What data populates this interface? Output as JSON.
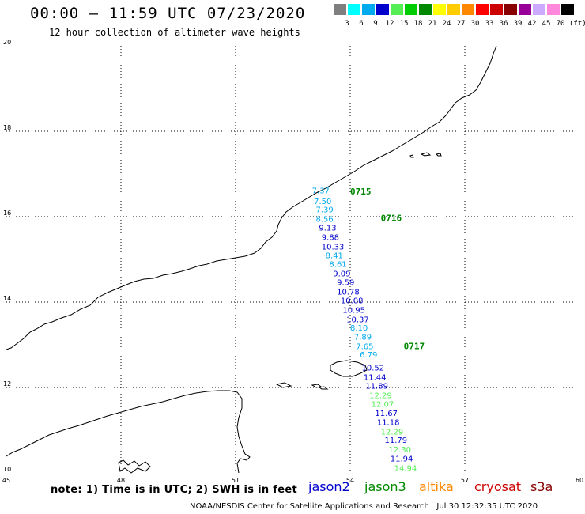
{
  "header": {
    "title": "00:00 – 11:59 UTC 07/23/2020",
    "subtitle": "12 hour collection of altimeter wave heights"
  },
  "legend": {
    "unit": "(ft)",
    "bins": [
      {
        "label": "3",
        "color": "#7f7f7f"
      },
      {
        "label": "6",
        "color": "#00ffff"
      },
      {
        "label": "9",
        "color": "#00aaee"
      },
      {
        "label": "12",
        "color": "#0000cc"
      },
      {
        "label": "15",
        "color": "#55ee55"
      },
      {
        "label": "18",
        "color": "#00cc00"
      },
      {
        "label": "21",
        "color": "#008800"
      },
      {
        "label": "24",
        "color": "#ffff00"
      },
      {
        "label": "27",
        "color": "#ffcc00"
      },
      {
        "label": "30",
        "color": "#ff8800"
      },
      {
        "label": "33",
        "color": "#ff0000"
      },
      {
        "label": "36",
        "color": "#cc0000"
      },
      {
        "label": "39",
        "color": "#880000"
      },
      {
        "label": "42",
        "color": "#990099"
      },
      {
        "label": "45",
        "color": "#ccaaff"
      },
      {
        "label": "70",
        "color": "#ff88dd"
      },
      {
        "label": "",
        "color": "#000000"
      }
    ]
  },
  "axes": {
    "lon_ticks": [
      "45",
      "48",
      "51",
      "54",
      "57",
      "60"
    ],
    "lat_ticks": [
      "10",
      "12",
      "14",
      "16",
      "18",
      "20"
    ],
    "lon_range": [
      45,
      60
    ],
    "lat_range": [
      10,
      20
    ]
  },
  "tracks": [
    {
      "label": "0715",
      "color": "#008800",
      "lon": 54.0,
      "lat": 16.52
    },
    {
      "label": "0716",
      "color": "#008800",
      "lon": 54.8,
      "lat": 15.9
    },
    {
      "label": "0717",
      "color": "#008800",
      "lon": 55.4,
      "lat": 12.9
    }
  ],
  "observations": [
    {
      "value": "7.37",
      "color": "#00aaee",
      "lon": 53.0,
      "lat": 16.55
    },
    {
      "value": "7.50",
      "color": "#00aaee",
      "lon": 53.05,
      "lat": 16.3
    },
    {
      "value": "7.39",
      "color": "#00aaee",
      "lon": 53.1,
      "lat": 16.1
    },
    {
      "value": "8.56",
      "color": "#00aaee",
      "lon": 53.1,
      "lat": 15.88
    },
    {
      "value": "9.13",
      "color": "#0000cc",
      "lon": 53.18,
      "lat": 15.68
    },
    {
      "value": "9.88",
      "color": "#0000cc",
      "lon": 53.25,
      "lat": 15.45
    },
    {
      "value": "10.33",
      "color": "#0000cc",
      "lon": 53.25,
      "lat": 15.23
    },
    {
      "value": "8.41",
      "color": "#00aaee",
      "lon": 53.35,
      "lat": 15.03
    },
    {
      "value": "8.61",
      "color": "#00aaee",
      "lon": 53.45,
      "lat": 14.82
    },
    {
      "value": "9.09",
      "color": "#0000cc",
      "lon": 53.55,
      "lat": 14.6
    },
    {
      "value": "9.59",
      "color": "#0000cc",
      "lon": 53.65,
      "lat": 14.4
    },
    {
      "value": "10.78",
      "color": "#0000cc",
      "lon": 53.65,
      "lat": 14.18
    },
    {
      "value": "10.08",
      "color": "#0000cc",
      "lon": 53.75,
      "lat": 13.97
    },
    {
      "value": "10.95",
      "color": "#0000cc",
      "lon": 53.8,
      "lat": 13.75
    },
    {
      "value": "10.37",
      "color": "#0000cc",
      "lon": 53.9,
      "lat": 13.53
    },
    {
      "value": "8.10",
      "color": "#00aaee",
      "lon": 54.0,
      "lat": 13.33
    },
    {
      "value": "7.89",
      "color": "#00aaee",
      "lon": 54.1,
      "lat": 13.12
    },
    {
      "value": "7.65",
      "color": "#00aaee",
      "lon": 54.15,
      "lat": 12.9
    },
    {
      "value": "6.79",
      "color": "#00aaee",
      "lon": 54.25,
      "lat": 12.7
    },
    {
      "value": "10.52",
      "color": "#0000cc",
      "lon": 54.3,
      "lat": 12.4
    },
    {
      "value": "11.44",
      "color": "#0000cc",
      "lon": 54.35,
      "lat": 12.18
    },
    {
      "value": "11.89",
      "color": "#0000cc",
      "lon": 54.4,
      "lat": 11.97
    },
    {
      "value": "12.29",
      "color": "#55ee55",
      "lon": 54.5,
      "lat": 11.75
    },
    {
      "value": "12.07",
      "color": "#55ee55",
      "lon": 54.55,
      "lat": 11.55
    },
    {
      "value": "11.67",
      "color": "#0000cc",
      "lon": 54.65,
      "lat": 11.33
    },
    {
      "value": "11.18",
      "color": "#0000cc",
      "lon": 54.7,
      "lat": 11.12
    },
    {
      "value": "12.29",
      "color": "#55ee55",
      "lon": 54.8,
      "lat": 10.9
    },
    {
      "value": "11.79",
      "color": "#0000cc",
      "lon": 54.9,
      "lat": 10.7
    },
    {
      "value": "12.30",
      "color": "#55ee55",
      "lon": 55.0,
      "lat": 10.48
    },
    {
      "value": "11.94",
      "color": "#0000cc",
      "lon": 55.05,
      "lat": 10.27
    },
    {
      "value": "14.94",
      "color": "#55ee55",
      "lon": 55.15,
      "lat": 10.05
    }
  ],
  "footer": {
    "note": "note: 1) Time is in UTC; 2) SWH is in feet",
    "credit": "NOAA/NESDIS Center for Satellite Applications and Research   Jul 30 12:32:35 UTC 2020",
    "satellites": [
      {
        "name": "jason2",
        "color": "#0000cc"
      },
      {
        "name": "jason3",
        "color": "#008800"
      },
      {
        "name": "altika",
        "color": "#ff8800"
      },
      {
        "name": "cryosat",
        "color": "#cc0000"
      },
      {
        "name": "s3a",
        "color": "#880000"
      }
    ]
  }
}
